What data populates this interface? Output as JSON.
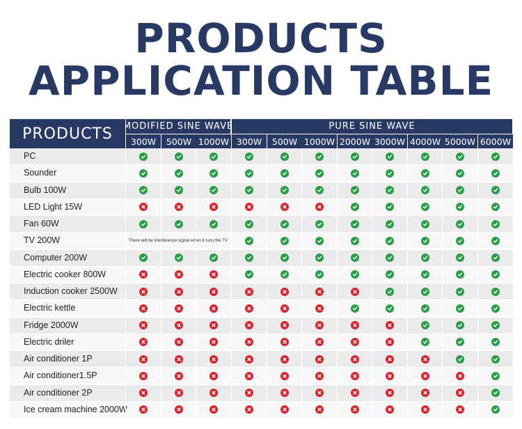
{
  "title": {
    "line1": "PRODUCTS",
    "line2": "APPLICATION TABLE"
  },
  "header": {
    "products_label": "PRODUCTS",
    "groups": [
      {
        "label": "MODIFIED SINE WAVE"
      },
      {
        "label": "PURE SINE WAVE"
      }
    ],
    "columns": [
      "300W",
      "500W",
      "1000W",
      "300W",
      "500W",
      "1000W",
      "2000W",
      "3000W",
      "4000W",
      "5000W",
      "6000W"
    ]
  },
  "rows": [
    {
      "label": "PC",
      "cells": "YYYYYYYYYYY"
    },
    {
      "label": "Sounder",
      "cells": "YYYYYYYYYYY"
    },
    {
      "label": "Bulb 100W",
      "cells": "YYYYYYYYYYY"
    },
    {
      "label": "LED Light 15W",
      "cells": "NNNNNNYYYYY"
    },
    {
      "label": "Fan 60W",
      "cells": "YYYYYYYYYYY"
    },
    {
      "label": "TV 200W",
      "cells": "---YYYYYYYY",
      "note": "There will be interference signal when it runs the TV"
    },
    {
      "label": "Computer 200W",
      "cells": "YYYYYYYYYYY"
    },
    {
      "label": "Electric cooker 800W",
      "cells": "NNNYYYYYYYY"
    },
    {
      "label": "Induction cooker 2500W",
      "cells": "NNNNNNNYYYY"
    },
    {
      "label": "Electric kettle",
      "cells": "NNNNNNYYYYY"
    },
    {
      "label": "Fridge 2000W",
      "cells": "NNNNNNNNYYY"
    },
    {
      "label": "Electric driler",
      "cells": "NNNNNNNNYYY"
    },
    {
      "label": "Air conditioner 1P",
      "cells": "NNNNNNNNNYY"
    },
    {
      "label": "Air conditioner1.5P",
      "cells": "NNNNNNNNNNY"
    },
    {
      "label": "Air conditioner 2P",
      "cells": "NNNNNNNNNNY"
    },
    {
      "label": "Ice cream machine 2000W",
      "cells": "NNNNNNNNNNY"
    }
  ],
  "icons": {
    "yes": "check-circle-icon",
    "no": "cross-circle-icon"
  },
  "colors": {
    "header": "#283a63",
    "yes": "#2a9d48",
    "no": "#d8242f"
  }
}
